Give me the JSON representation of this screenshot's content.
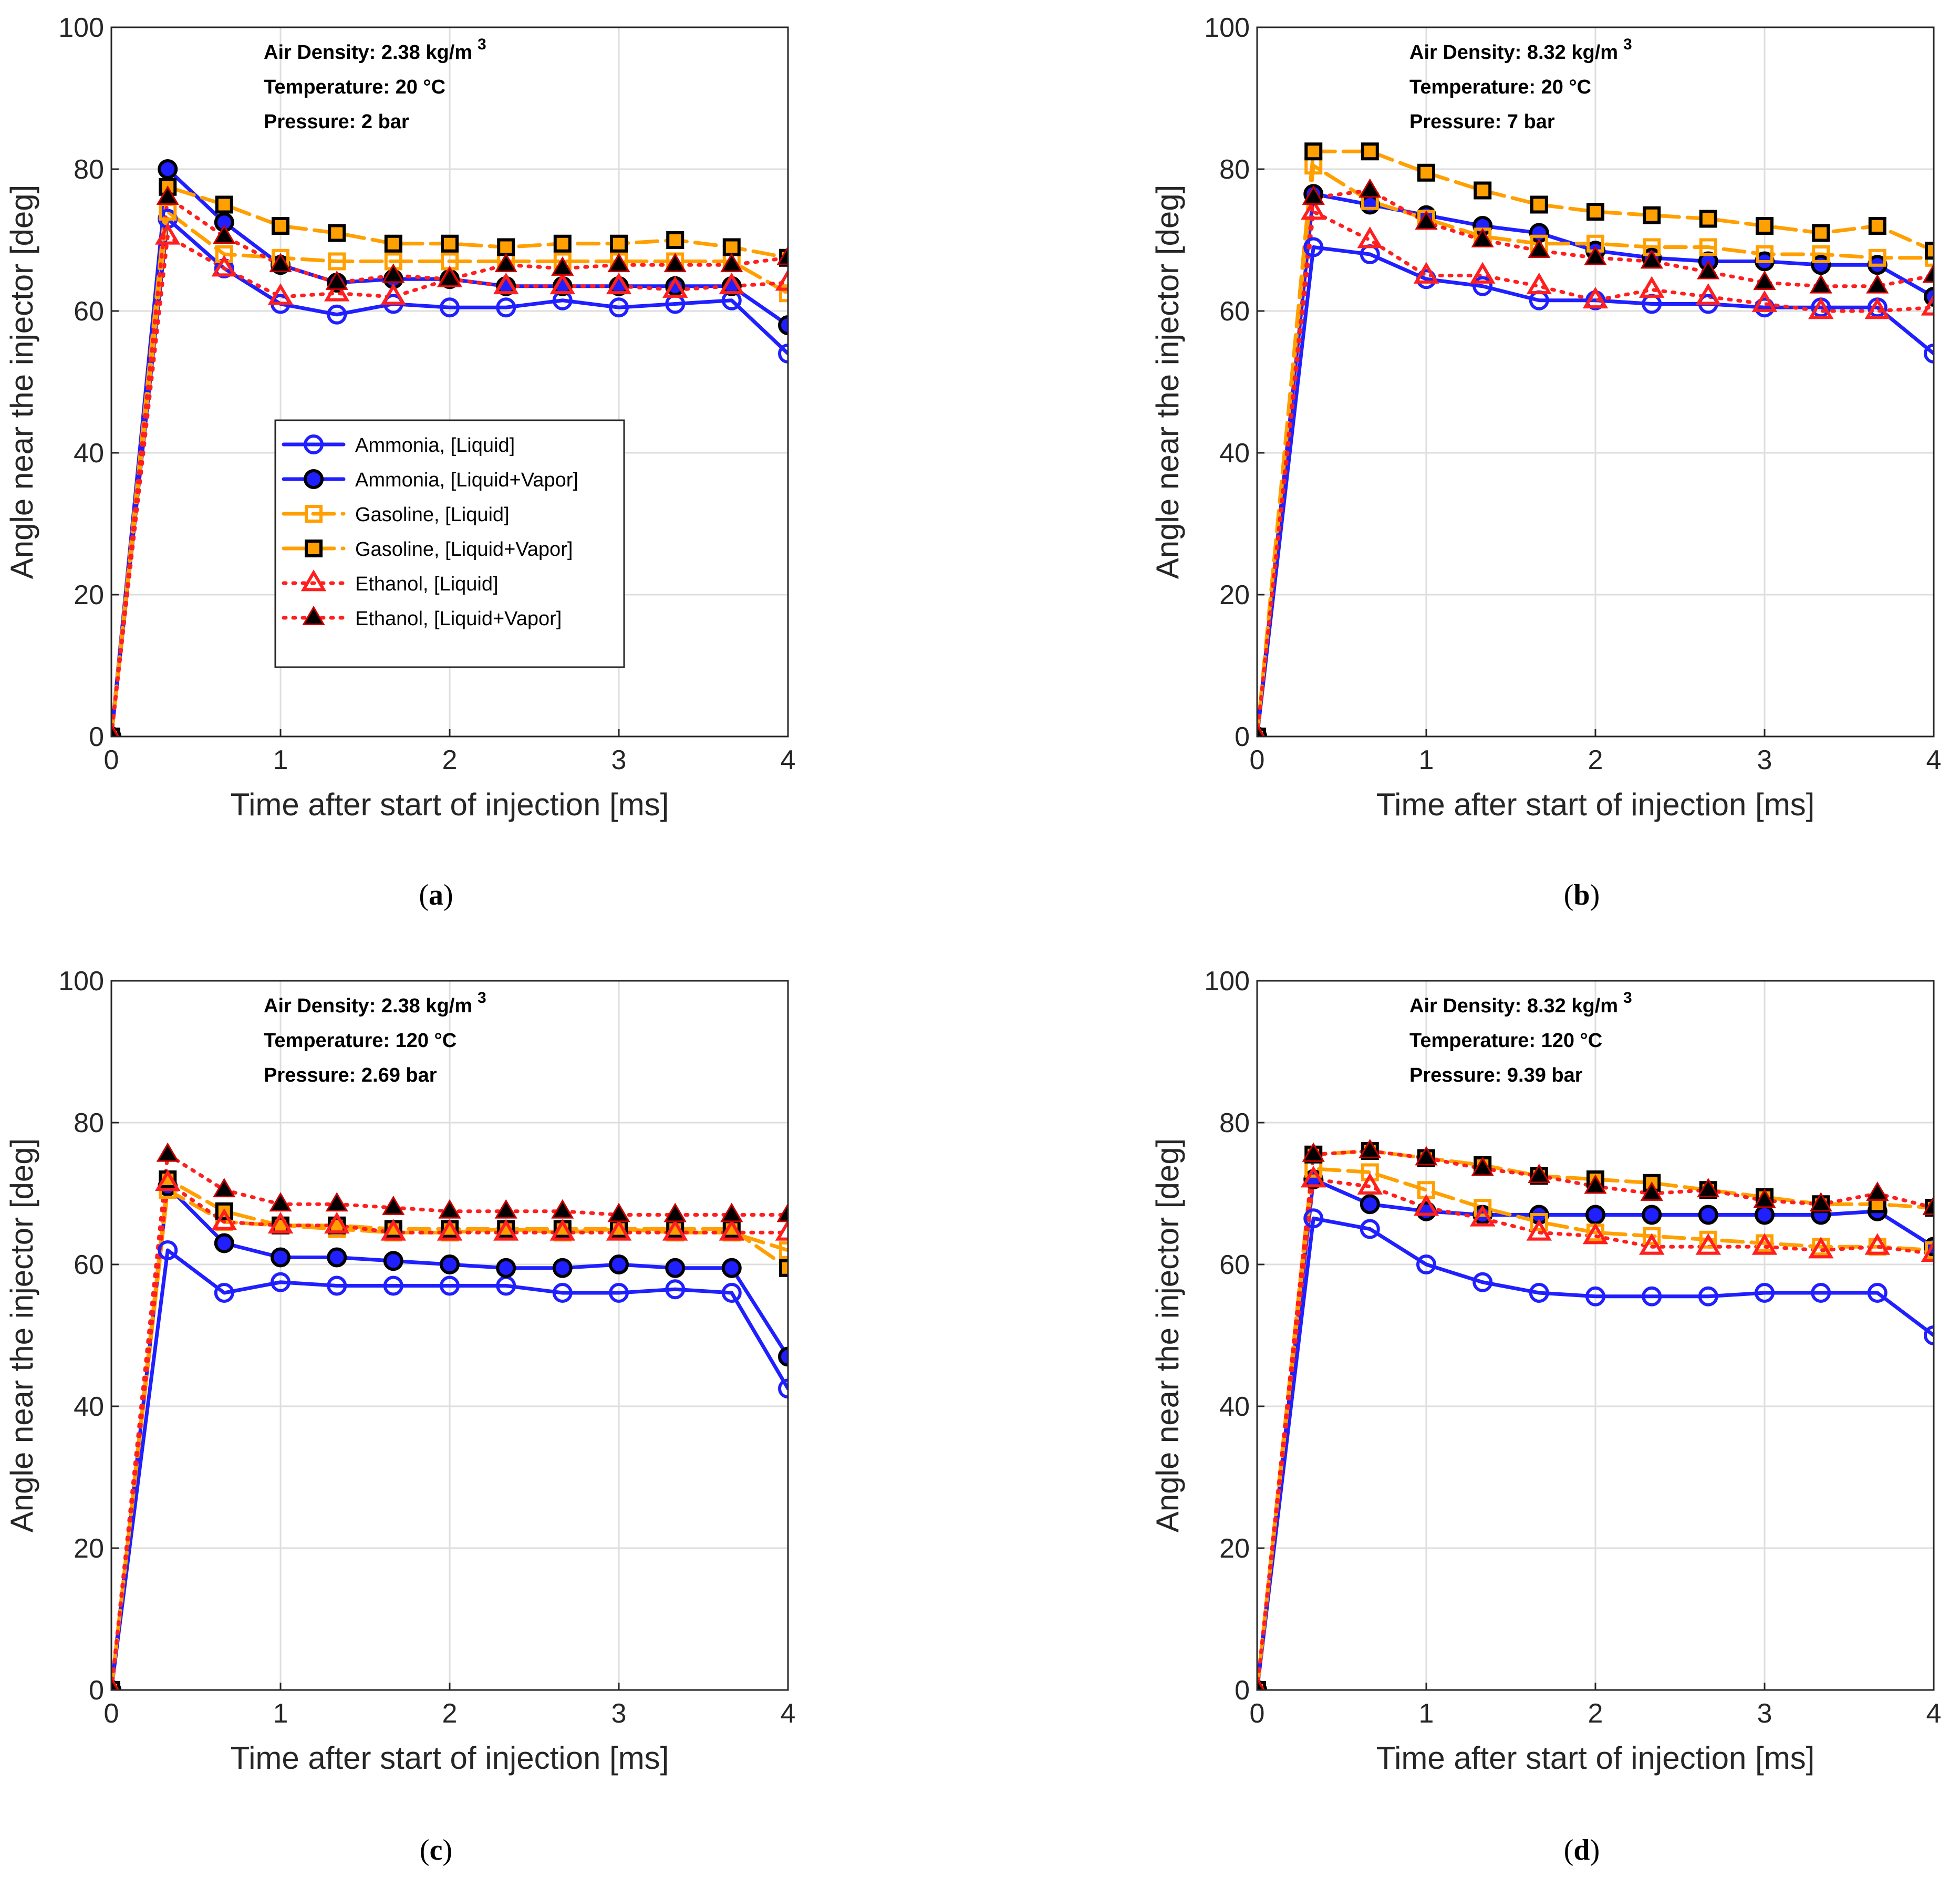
{
  "series_styles": [
    {
      "name": "Ammonia, [Liquid]",
      "color": "#1f1fff",
      "dash": "",
      "marker": "circle",
      "filled": false
    },
    {
      "name": "Ammonia, [Liquid+Vapor]",
      "color": "#1f1fff",
      "dash": "",
      "marker": "circle",
      "filled": true
    },
    {
      "name": "Gasoline, [Liquid]",
      "color": "#ff9f00",
      "dash": "40,16",
      "marker": "square",
      "filled": false
    },
    {
      "name": "Gasoline, [Liquid+Vapor]",
      "color": "#ff9f00",
      "dash": "40,16",
      "marker": "square",
      "filled": true
    },
    {
      "name": "Ethanol, [Liquid]",
      "color": "#ff1f1f",
      "dash": "4,14",
      "marker": "triangle",
      "filled": false
    },
    {
      "name": "Ethanol, [Liquid+Vapor]",
      "color": "#ff1f1f",
      "dash": "4,14",
      "marker": "triangle",
      "filled": true
    }
  ],
  "chart_data": [
    {
      "type": "line",
      "caption_letter": "a",
      "xlabel": "Time after start of injection [ms]",
      "ylabel": "Angle near the injector [deg]",
      "xlim": [
        0,
        4
      ],
      "ylim": [
        0,
        100
      ],
      "xticks": [
        0,
        1,
        2,
        3,
        4
      ],
      "yticks": [
        0,
        20,
        40,
        60,
        80,
        100
      ],
      "grid": true,
      "legend_location": "center-left",
      "annotation": {
        "density": "Air Density: 2.38 kg/m",
        "density_sup": "3",
        "temperature": "Temperature: 20 °C",
        "pressure": "Pressure: 2 bar"
      },
      "x": [
        0,
        0.333,
        0.667,
        1.0,
        1.333,
        1.667,
        2.0,
        2.333,
        2.667,
        3.0,
        3.333,
        3.667,
        4.0
      ],
      "series": [
        {
          "name": "Ammonia, [Liquid]",
          "values": [
            0,
            73,
            66,
            61,
            59.5,
            61,
            60.5,
            60.5,
            61.5,
            60.5,
            61,
            61.5,
            54
          ]
        },
        {
          "name": "Ammonia, [Liquid+Vapor]",
          "values": [
            0,
            80,
            72.5,
            66.5,
            64,
            64.5,
            64.5,
            63.5,
            63.5,
            63.5,
            63.5,
            63.5,
            58
          ]
        },
        {
          "name": "Gasoline, [Liquid]",
          "values": [
            0,
            74,
            68,
            67.5,
            67,
            67,
            67,
            67,
            67,
            67,
            67,
            67,
            62.5
          ]
        },
        {
          "name": "Gasoline, [Liquid+Vapor]",
          "values": [
            0,
            77.5,
            75,
            72,
            71,
            69.5,
            69.5,
            69,
            69.5,
            69.5,
            70,
            69,
            67.5
          ]
        },
        {
          "name": "Ethanol, [Liquid]",
          "values": [
            0,
            70.5,
            66,
            62,
            62.5,
            62,
            64.5,
            63.5,
            63.5,
            63.5,
            63,
            63.5,
            64
          ]
        },
        {
          "name": "Ethanol, [Liquid+Vapor]",
          "values": [
            0,
            76,
            70.5,
            66.5,
            64,
            65,
            64.5,
            66.5,
            66,
            66.5,
            66.5,
            66.5,
            67.5
          ]
        }
      ]
    },
    {
      "type": "line",
      "caption_letter": "b",
      "xlabel": "Time after start of injection [ms]",
      "ylabel": "Angle near the injector [deg]",
      "xlim": [
        0,
        4
      ],
      "ylim": [
        0,
        100
      ],
      "xticks": [
        0,
        1,
        2,
        3,
        4
      ],
      "yticks": [
        0,
        20,
        40,
        60,
        80,
        100
      ],
      "grid": true,
      "annotation": {
        "density": "Air Density: 8.32 kg/m",
        "density_sup": "3",
        "temperature": "Temperature: 20 °C",
        "pressure": "Pressure: 7 bar"
      },
      "x": [
        0,
        0.333,
        0.667,
        1.0,
        1.333,
        1.667,
        2.0,
        2.333,
        2.667,
        3.0,
        3.333,
        3.667,
        4.0
      ],
      "series": [
        {
          "name": "Ammonia, [Liquid]",
          "values": [
            0,
            69,
            68,
            64.5,
            63.5,
            61.5,
            61.5,
            61,
            61,
            60.5,
            60.5,
            60.5,
            54
          ]
        },
        {
          "name": "Ammonia, [Liquid+Vapor]",
          "values": [
            0,
            76.5,
            75,
            73.5,
            72,
            71,
            68.5,
            67.5,
            67,
            67,
            66.5,
            66.5,
            62
          ]
        },
        {
          "name": "Gasoline, [Liquid]",
          "values": [
            0,
            80.5,
            75.5,
            73,
            70.5,
            69.5,
            69.5,
            69,
            69,
            68,
            68,
            67.5,
            67.5
          ]
        },
        {
          "name": "Gasoline, [Liquid+Vapor]",
          "values": [
            0,
            82.5,
            82.5,
            79.5,
            77,
            75,
            74,
            73.5,
            73,
            72,
            71,
            72,
            68.5
          ]
        },
        {
          "name": "Ethanol, [Liquid]",
          "values": [
            0,
            74,
            70,
            65,
            65,
            63.5,
            61.5,
            63,
            62,
            61,
            60,
            60,
            60.5
          ]
        },
        {
          "name": "Ethanol, [Liquid+Vapor]",
          "values": [
            0,
            76,
            77,
            72.5,
            70,
            68.5,
            67.5,
            67,
            65.5,
            64,
            63.5,
            63.5,
            65
          ]
        }
      ]
    },
    {
      "type": "line",
      "caption_letter": "c",
      "xlabel": "Time after start of injection [ms]",
      "ylabel": "Angle near the injector [deg]",
      "xlim": [
        0,
        4
      ],
      "ylim": [
        0,
        100
      ],
      "xticks": [
        0,
        1,
        2,
        3,
        4
      ],
      "yticks": [
        0,
        20,
        40,
        60,
        80,
        100
      ],
      "grid": true,
      "annotation": {
        "density": "Air Density: 2.38 kg/m",
        "density_sup": "3",
        "temperature": "Temperature: 120 °C",
        "pressure": "Pressure: 2.69 bar"
      },
      "x": [
        0,
        0.333,
        0.667,
        1.0,
        1.333,
        1.667,
        2.0,
        2.333,
        2.667,
        3.0,
        3.333,
        3.667,
        4.0
      ],
      "series": [
        {
          "name": "Ammonia, [Liquid]",
          "values": [
            0,
            62,
            56,
            57.5,
            57,
            57,
            57,
            57,
            56,
            56,
            56.5,
            56,
            42.5
          ]
        },
        {
          "name": "Ammonia, [Liquid+Vapor]",
          "values": [
            0,
            71,
            63,
            61,
            61,
            60.5,
            60,
            59.5,
            59.5,
            60,
            59.5,
            59.5,
            47
          ]
        },
        {
          "name": "Gasoline, [Liquid]",
          "values": [
            0,
            70.5,
            66,
            65.5,
            65,
            64.5,
            64.5,
            65,
            64.5,
            65,
            64.5,
            64.5,
            62
          ]
        },
        {
          "name": "Gasoline, [Liquid+Vapor]",
          "values": [
            0,
            72,
            67.5,
            65.5,
            65.5,
            65,
            65,
            65,
            65,
            65,
            65,
            65,
            59.5
          ]
        },
        {
          "name": "Ethanol, [Liquid]",
          "values": [
            0,
            71.5,
            66,
            65.5,
            65.5,
            64.5,
            64.5,
            64.5,
            64.5,
            64.5,
            64.5,
            64.5,
            64.5
          ]
        },
        {
          "name": "Ethanol, [Liquid+Vapor]",
          "values": [
            0,
            75.5,
            70.5,
            68.5,
            68.5,
            68,
            67.5,
            67.5,
            67.5,
            67,
            67,
            67,
            67
          ]
        }
      ]
    },
    {
      "type": "line",
      "caption_letter": "d",
      "xlabel": "Time after start of injection [ms]",
      "ylabel": "Angle near the injector [deg]",
      "xlim": [
        0,
        4
      ],
      "ylim": [
        0,
        100
      ],
      "xticks": [
        0,
        1,
        2,
        3,
        4
      ],
      "yticks": [
        0,
        20,
        40,
        60,
        80,
        100
      ],
      "grid": true,
      "annotation": {
        "density": "Air Density: 8.32 kg/m",
        "density_sup": "3",
        "temperature": "Temperature: 120 °C",
        "pressure": "Pressure: 9.39 bar"
      },
      "x": [
        0,
        0.333,
        0.667,
        1.0,
        1.333,
        1.667,
        2.0,
        2.333,
        2.667,
        3.0,
        3.333,
        3.667,
        4.0
      ],
      "series": [
        {
          "name": "Ammonia, [Liquid]",
          "values": [
            0,
            66.5,
            65,
            60,
            57.5,
            56,
            55.5,
            55.5,
            55.5,
            56,
            56,
            56,
            50
          ]
        },
        {
          "name": "Ammonia, [Liquid+Vapor]",
          "values": [
            0,
            72,
            68.5,
            67.5,
            67,
            67,
            67,
            67,
            67,
            67,
            67,
            67.5,
            62.5
          ]
        },
        {
          "name": "Gasoline, [Liquid]",
          "values": [
            0,
            73.5,
            73,
            70.5,
            68,
            66,
            64.5,
            64,
            63.5,
            63,
            62.5,
            62.5,
            62
          ]
        },
        {
          "name": "Gasoline, [Liquid+Vapor]",
          "values": [
            0,
            75.5,
            76,
            75,
            74,
            72.5,
            72,
            71.5,
            70.5,
            69.5,
            68.5,
            68.5,
            68
          ]
        },
        {
          "name": "Ethanol, [Liquid]",
          "values": [
            0,
            72,
            71,
            68,
            66.5,
            64.5,
            64,
            62.5,
            62.5,
            62.5,
            62,
            62.5,
            61.5
          ]
        },
        {
          "name": "Ethanol, [Liquid+Vapor]",
          "values": [
            0,
            75.5,
            76,
            75,
            73.5,
            72.5,
            71,
            70,
            70.5,
            69,
            68.5,
            70,
            68
          ]
        }
      ]
    }
  ]
}
